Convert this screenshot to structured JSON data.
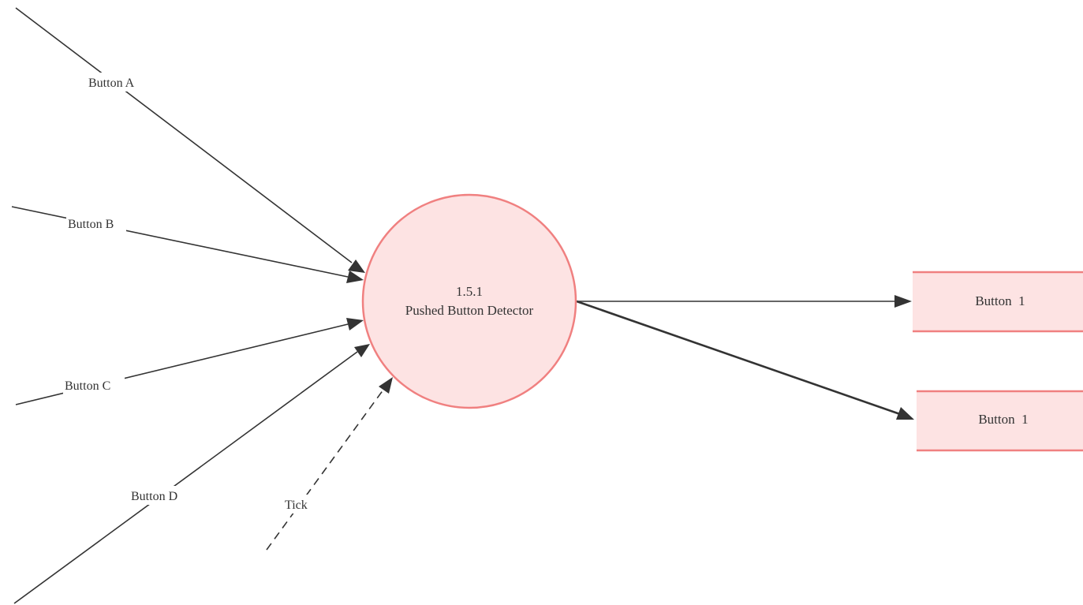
{
  "process": {
    "number": "1.5.1",
    "name": "Pushed Button Detector"
  },
  "inputs": {
    "button_a": "Button A",
    "button_b": "Button B",
    "button_c": "Button C",
    "button_d": "Button D",
    "tick": "Tick"
  },
  "outputs": {
    "store_1": "Button  1",
    "store_2": "Button  1"
  },
  "colors": {
    "process_fill": "#fde3e3",
    "process_stroke": "#f08080",
    "line": "#333333"
  }
}
